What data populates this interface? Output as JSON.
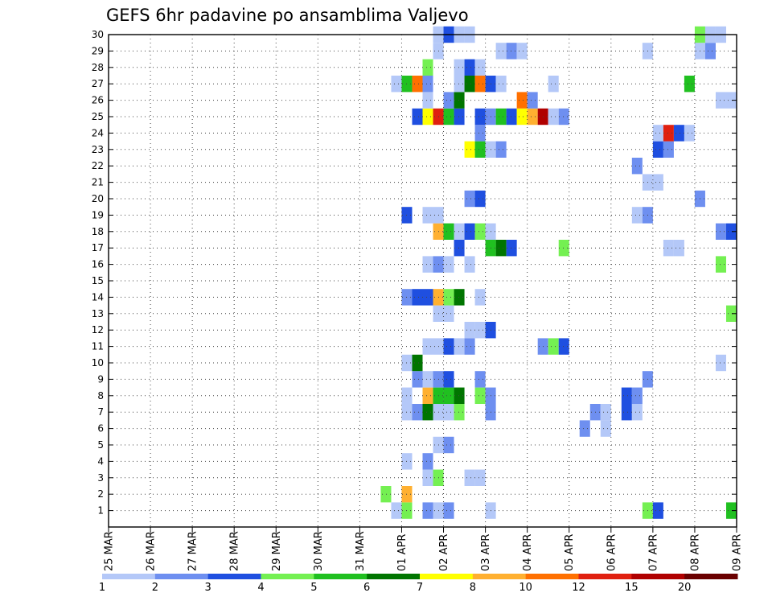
{
  "chart_data": {
    "type": "heatmap",
    "title": "GEFS 6hr padavine po ansamblima Valjevo",
    "x_ticks": [
      "25 MAR",
      "26 MAR",
      "27 MAR",
      "28 MAR",
      "29 MAR",
      "30 MAR",
      "31 MAR",
      "01 APR",
      "02 APR",
      "03 APR",
      "04 APR",
      "05 APR",
      "06 APR",
      "07 APR",
      "08 APR",
      "09 APR"
    ],
    "x_range_days": [
      0,
      15
    ],
    "y_ticks": [
      1,
      2,
      3,
      4,
      5,
      6,
      7,
      8,
      9,
      10,
      11,
      12,
      13,
      14,
      15,
      16,
      17,
      18,
      19,
      20,
      21,
      22,
      23,
      24,
      25,
      26,
      27,
      28,
      29,
      30
    ],
    "y_range": [
      0,
      30
    ],
    "grid": "dotted",
    "colorbar": {
      "labels": [
        "1",
        "2",
        "3",
        "4",
        "5",
        "6",
        "7",
        "8",
        "10",
        "12",
        "15",
        "20"
      ],
      "bins": [
        {
          "min": 1,
          "color": "#b4c8f8"
        },
        {
          "min": 2,
          "color": "#6e8ff0"
        },
        {
          "min": 3,
          "color": "#1f4fe0"
        },
        {
          "min": 4,
          "color": "#74f052"
        },
        {
          "min": 5,
          "color": "#20c020"
        },
        {
          "min": 6,
          "color": "#007500"
        },
        {
          "min": 7,
          "color": "#ffff00"
        },
        {
          "min": 8,
          "color": "#ffb030"
        },
        {
          "min": 10,
          "color": "#ff7000"
        },
        {
          "min": 12,
          "color": "#e02010"
        },
        {
          "min": 15,
          "color": "#b00000"
        },
        {
          "min": 20,
          "color": "#6a0000"
        }
      ]
    },
    "cell_width_days": 0.25,
    "cells": [
      {
        "d": 6.75,
        "m": 1,
        "v": 1.5
      },
      {
        "d": 7.0,
        "m": 1,
        "v": 4.5
      },
      {
        "d": 7.5,
        "m": 1,
        "v": 2.5
      },
      {
        "d": 7.75,
        "m": 1,
        "v": 1.5
      },
      {
        "d": 8.0,
        "m": 1,
        "v": 2.5
      },
      {
        "d": 9.0,
        "m": 1,
        "v": 1.5
      },
      {
        "d": 12.75,
        "m": 1,
        "v": 4.5
      },
      {
        "d": 13.0,
        "m": 1,
        "v": 3.5
      },
      {
        "d": 14.75,
        "m": 1,
        "v": 5.5
      },
      {
        "d": 6.5,
        "m": 2,
        "v": 4.5
      },
      {
        "d": 7.0,
        "m": 2,
        "v": 9
      },
      {
        "d": 7.5,
        "m": 3,
        "v": 1.5
      },
      {
        "d": 7.75,
        "m": 3,
        "v": 4.5
      },
      {
        "d": 8.5,
        "m": 3,
        "v": 1.5
      },
      {
        "d": 8.75,
        "m": 3,
        "v": 1.5
      },
      {
        "d": 7.0,
        "m": 4,
        "v": 1.5
      },
      {
        "d": 7.5,
        "m": 4,
        "v": 2.5
      },
      {
        "d": 7.75,
        "m": 5,
        "v": 1.5
      },
      {
        "d": 8.0,
        "m": 5,
        "v": 2.5
      },
      {
        "d": 11.25,
        "m": 6,
        "v": 2.5
      },
      {
        "d": 11.75,
        "m": 6,
        "v": 1.5
      },
      {
        "d": 7.0,
        "m": 7,
        "v": 1.5
      },
      {
        "d": 7.25,
        "m": 7,
        "v": 2.5
      },
      {
        "d": 7.5,
        "m": 7,
        "v": 6.5
      },
      {
        "d": 7.75,
        "m": 7,
        "v": 1.5
      },
      {
        "d": 8.0,
        "m": 7,
        "v": 1.5
      },
      {
        "d": 8.25,
        "m": 7,
        "v": 4.5
      },
      {
        "d": 9.0,
        "m": 7,
        "v": 2.5
      },
      {
        "d": 11.5,
        "m": 7,
        "v": 2.5
      },
      {
        "d": 11.75,
        "m": 7,
        "v": 1.5
      },
      {
        "d": 12.25,
        "m": 7,
        "v": 3.5
      },
      {
        "d": 12.5,
        "m": 7,
        "v": 1.5
      },
      {
        "d": 7.0,
        "m": 8,
        "v": 1.5
      },
      {
        "d": 7.5,
        "m": 8,
        "v": 9
      },
      {
        "d": 7.75,
        "m": 8,
        "v": 5.5
      },
      {
        "d": 8.0,
        "m": 8,
        "v": 5.5
      },
      {
        "d": 8.25,
        "m": 8,
        "v": 6.5
      },
      {
        "d": 8.75,
        "m": 8,
        "v": 4.5
      },
      {
        "d": 9.0,
        "m": 8,
        "v": 2.5
      },
      {
        "d": 12.25,
        "m": 8,
        "v": 3.5
      },
      {
        "d": 12.5,
        "m": 8,
        "v": 2.5
      },
      {
        "d": 7.25,
        "m": 9,
        "v": 2.5
      },
      {
        "d": 7.5,
        "m": 9,
        "v": 1.5
      },
      {
        "d": 7.75,
        "m": 9,
        "v": 2.5
      },
      {
        "d": 8.0,
        "m": 9,
        "v": 3.5
      },
      {
        "d": 8.75,
        "m": 9,
        "v": 2.5
      },
      {
        "d": 12.75,
        "m": 9,
        "v": 2.5
      },
      {
        "d": 7.0,
        "m": 10,
        "v": 1.5
      },
      {
        "d": 7.25,
        "m": 10,
        "v": 6.5
      },
      {
        "d": 14.5,
        "m": 10,
        "v": 1.5
      },
      {
        "d": 7.5,
        "m": 11,
        "v": 1.5
      },
      {
        "d": 7.75,
        "m": 11,
        "v": 1.5
      },
      {
        "d": 8.0,
        "m": 11,
        "v": 3.5
      },
      {
        "d": 8.25,
        "m": 11,
        "v": 1.5
      },
      {
        "d": 8.5,
        "m": 11,
        "v": 2.5
      },
      {
        "d": 10.25,
        "m": 11,
        "v": 2.5
      },
      {
        "d": 10.5,
        "m": 11,
        "v": 4.5
      },
      {
        "d": 10.75,
        "m": 11,
        "v": 3.5
      },
      {
        "d": 8.5,
        "m": 12,
        "v": 1.5
      },
      {
        "d": 8.75,
        "m": 12,
        "v": 1.5
      },
      {
        "d": 9.0,
        "m": 12,
        "v": 3.5
      },
      {
        "d": 7.75,
        "m": 13,
        "v": 1.5
      },
      {
        "d": 8.0,
        "m": 13,
        "v": 1.5
      },
      {
        "d": 14.75,
        "m": 13,
        "v": 4.5
      },
      {
        "d": 7.0,
        "m": 14,
        "v": 2.5
      },
      {
        "d": 7.25,
        "m": 14,
        "v": 3.5
      },
      {
        "d": 7.5,
        "m": 14,
        "v": 3.5
      },
      {
        "d": 7.75,
        "m": 14,
        "v": 9
      },
      {
        "d": 8.0,
        "m": 14,
        "v": 4.5
      },
      {
        "d": 8.25,
        "m": 14,
        "v": 6.5
      },
      {
        "d": 8.75,
        "m": 14,
        "v": 1.5
      },
      {
        "d": 7.5,
        "m": 16,
        "v": 1.5
      },
      {
        "d": 7.75,
        "m": 16,
        "v": 2.5
      },
      {
        "d": 8.0,
        "m": 16,
        "v": 1.5
      },
      {
        "d": 8.5,
        "m": 16,
        "v": 1.5
      },
      {
        "d": 14.5,
        "m": 16,
        "v": 4.5
      },
      {
        "d": 8.25,
        "m": 17,
        "v": 3.5
      },
      {
        "d": 9.0,
        "m": 17,
        "v": 5.5
      },
      {
        "d": 9.25,
        "m": 17,
        "v": 6.5
      },
      {
        "d": 9.5,
        "m": 17,
        "v": 3.5
      },
      {
        "d": 10.75,
        "m": 17,
        "v": 4.5
      },
      {
        "d": 13.25,
        "m": 17,
        "v": 1.5
      },
      {
        "d": 13.5,
        "m": 17,
        "v": 1.5
      },
      {
        "d": 7.75,
        "m": 18,
        "v": 9
      },
      {
        "d": 8.0,
        "m": 18,
        "v": 5.5
      },
      {
        "d": 8.25,
        "m": 18,
        "v": 1.5
      },
      {
        "d": 8.5,
        "m": 18,
        "v": 3.5
      },
      {
        "d": 8.75,
        "m": 18,
        "v": 4.5
      },
      {
        "d": 9.0,
        "m": 18,
        "v": 1.5
      },
      {
        "d": 14.5,
        "m": 18,
        "v": 2.5
      },
      {
        "d": 14.75,
        "m": 18,
        "v": 3.5
      },
      {
        "d": 7.0,
        "m": 19,
        "v": 3.5
      },
      {
        "d": 7.5,
        "m": 19,
        "v": 1.5
      },
      {
        "d": 7.75,
        "m": 19,
        "v": 1.5
      },
      {
        "d": 12.5,
        "m": 19,
        "v": 1.5
      },
      {
        "d": 12.75,
        "m": 19,
        "v": 2.5
      },
      {
        "d": 8.5,
        "m": 20,
        "v": 2.5
      },
      {
        "d": 8.75,
        "m": 20,
        "v": 3.5
      },
      {
        "d": 14.0,
        "m": 20,
        "v": 2.5
      },
      {
        "d": 12.75,
        "m": 21,
        "v": 1.5
      },
      {
        "d": 13.0,
        "m": 21,
        "v": 1.5
      },
      {
        "d": 12.5,
        "m": 22,
        "v": 2.5
      },
      {
        "d": 8.5,
        "m": 23,
        "v": 7.5
      },
      {
        "d": 8.75,
        "m": 23,
        "v": 5.5
      },
      {
        "d": 9.0,
        "m": 23,
        "v": 1.5
      },
      {
        "d": 9.25,
        "m": 23,
        "v": 2.5
      },
      {
        "d": 13.0,
        "m": 23,
        "v": 3.5
      },
      {
        "d": 13.25,
        "m": 23,
        "v": 2.5
      },
      {
        "d": 8.75,
        "m": 24,
        "v": 2.5
      },
      {
        "d": 13.0,
        "m": 24,
        "v": 1.5
      },
      {
        "d": 13.25,
        "m": 24,
        "v": 13
      },
      {
        "d": 13.5,
        "m": 24,
        "v": 3.5
      },
      {
        "d": 13.75,
        "m": 24,
        "v": 1.5
      },
      {
        "d": 7.25,
        "m": 25,
        "v": 3.5
      },
      {
        "d": 7.5,
        "m": 25,
        "v": 7.5
      },
      {
        "d": 7.75,
        "m": 25,
        "v": 13
      },
      {
        "d": 8.0,
        "m": 25,
        "v": 5.5
      },
      {
        "d": 8.25,
        "m": 25,
        "v": 3.5
      },
      {
        "d": 8.75,
        "m": 25,
        "v": 3.5
      },
      {
        "d": 9.0,
        "m": 25,
        "v": 2.5
      },
      {
        "d": 9.25,
        "m": 25,
        "v": 5.5
      },
      {
        "d": 9.5,
        "m": 25,
        "v": 3.5
      },
      {
        "d": 9.75,
        "m": 25,
        "v": 7.5
      },
      {
        "d": 10.0,
        "m": 25,
        "v": 9
      },
      {
        "d": 10.25,
        "m": 25,
        "v": 17
      },
      {
        "d": 10.5,
        "m": 25,
        "v": 1.5
      },
      {
        "d": 10.75,
        "m": 25,
        "v": 2.5
      },
      {
        "d": 7.5,
        "m": 26,
        "v": 1.5
      },
      {
        "d": 8.0,
        "m": 26,
        "v": 2.5
      },
      {
        "d": 8.25,
        "m": 26,
        "v": 6.5
      },
      {
        "d": 9.75,
        "m": 26,
        "v": 11
      },
      {
        "d": 10.0,
        "m": 26,
        "v": 2.5
      },
      {
        "d": 14.5,
        "m": 26,
        "v": 1.5
      },
      {
        "d": 14.75,
        "m": 26,
        "v": 1.5
      },
      {
        "d": 6.75,
        "m": 27,
        "v": 1.5
      },
      {
        "d": 7.0,
        "m": 27,
        "v": 5.5
      },
      {
        "d": 7.25,
        "m": 27,
        "v": 11
      },
      {
        "d": 7.5,
        "m": 27,
        "v": 2.5
      },
      {
        "d": 8.25,
        "m": 27,
        "v": 1.5
      },
      {
        "d": 8.5,
        "m": 27,
        "v": 6.5
      },
      {
        "d": 8.75,
        "m": 27,
        "v": 11
      },
      {
        "d": 9.0,
        "m": 27,
        "v": 3.5
      },
      {
        "d": 9.25,
        "m": 27,
        "v": 1.5
      },
      {
        "d": 10.5,
        "m": 27,
        "v": 1.5
      },
      {
        "d": 13.75,
        "m": 27,
        "v": 5.5
      },
      {
        "d": 7.5,
        "m": 28,
        "v": 4.5
      },
      {
        "d": 8.25,
        "m": 28,
        "v": 1.5
      },
      {
        "d": 8.5,
        "m": 28,
        "v": 3.5
      },
      {
        "d": 8.75,
        "m": 28,
        "v": 1.5
      },
      {
        "d": 7.75,
        "m": 29,
        "v": 1.5
      },
      {
        "d": 9.25,
        "m": 29,
        "v": 1.5
      },
      {
        "d": 9.5,
        "m": 29,
        "v": 2.5
      },
      {
        "d": 9.75,
        "m": 29,
        "v": 1.5
      },
      {
        "d": 12.75,
        "m": 29,
        "v": 1.5
      },
      {
        "d": 14.0,
        "m": 29,
        "v": 1.5
      },
      {
        "d": 14.25,
        "m": 29,
        "v": 2.5
      },
      {
        "d": 7.75,
        "m": 30,
        "v": 1.5
      },
      {
        "d": 8.0,
        "m": 30,
        "v": 3.5
      },
      {
        "d": 8.25,
        "m": 30,
        "v": 1.5
      },
      {
        "d": 8.5,
        "m": 30,
        "v": 1.5
      },
      {
        "d": 14.0,
        "m": 30,
        "v": 4.5
      },
      {
        "d": 14.25,
        "m": 30,
        "v": 1.5
      },
      {
        "d": 14.5,
        "m": 30,
        "v": 1.5
      }
    ]
  }
}
